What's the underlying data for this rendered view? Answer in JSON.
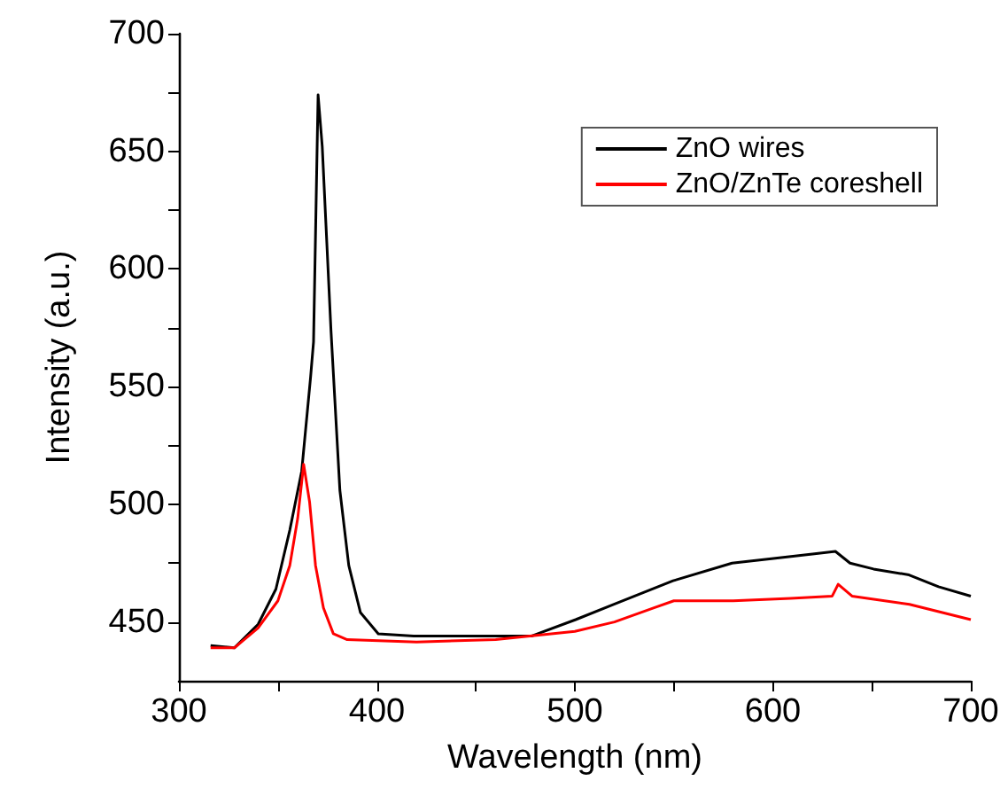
{
  "chart_data": {
    "type": "line",
    "xlabel": "Wavelength (nm)",
    "ylabel": "Intensity (a.u.)",
    "xlim": [
      300,
      700
    ],
    "xticks": [
      300,
      {
        "value": 350,
        "label": null
      },
      400,
      {
        "value": 450,
        "label": null
      },
      500,
      {
        "value": 550,
        "label": null
      },
      600,
      {
        "value": 650,
        "label": null
      },
      700
    ],
    "ylim": [
      425,
      700
    ],
    "yticks": [
      450,
      {
        "value": 475,
        "label": null
      },
      500,
      {
        "value": 525,
        "label": null
      },
      550,
      {
        "value": 575,
        "label": null
      },
      600,
      {
        "value": 625,
        "label": null
      },
      650,
      {
        "value": 675,
        "label": null
      },
      700
    ],
    "grid": false,
    "legend": "top right",
    "marker": "none",
    "line_style": "solid",
    "series": [
      {
        "name": "ZnO wires",
        "color": "#000000",
        "x": [
          316,
          328,
          340,
          349,
          356,
          362,
          366.5,
          368,
          370.3,
          372.4,
          376.8,
          381.3,
          385.8,
          391.7,
          400.7,
          418.6,
          460,
          478,
          500.4,
          519.8,
          549.6,
          579.4,
          600.3,
          621,
          631.6,
          639,
          650.9,
          668.8,
          683.7,
          700
        ],
        "values": [
          440,
          439,
          449,
          464,
          489,
          514,
          554,
          569,
          674,
          652,
          574,
          506,
          474,
          454,
          445,
          444,
          444,
          444,
          451,
          457.5,
          467.5,
          475,
          477,
          479,
          480,
          475,
          472.5,
          470,
          465,
          461
        ]
      },
      {
        "name": "ZnO/ZnTe coreshell",
        "color": "#ff0000",
        "x": [
          316,
          328,
          340,
          350,
          356,
          360,
          363,
          366,
          369,
          373,
          378,
          385,
          420,
          460,
          500,
          520,
          540,
          550,
          580,
          609,
          630,
          633,
          640,
          669,
          700
        ],
        "values": [
          439,
          439,
          447.5,
          459,
          474,
          494,
          517,
          501,
          474,
          456,
          445,
          442.5,
          441.5,
          442.5,
          446,
          450,
          456,
          459,
          459,
          460,
          461,
          466,
          461,
          457.5,
          451
        ]
      }
    ]
  }
}
